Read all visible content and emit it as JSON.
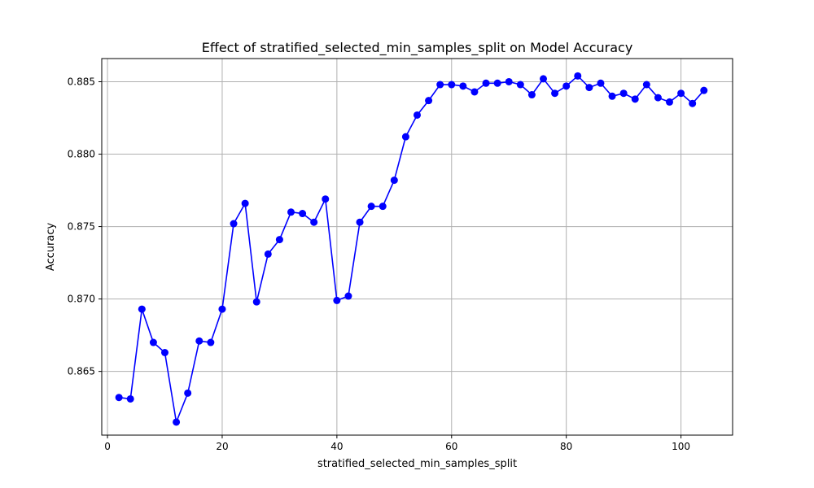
{
  "chart_data": {
    "type": "line",
    "title": "Effect of stratified_selected_min_samples_split on Model Accuracy",
    "xlabel": "stratified_selected_min_samples_split",
    "ylabel": "Accuracy",
    "xlim": [
      -1,
      109
    ],
    "ylim": [
      0.8606,
      0.8866
    ],
    "xticks": [
      0,
      20,
      40,
      60,
      80,
      100
    ],
    "yticks": [
      0.865,
      0.87,
      0.875,
      0.88,
      0.885
    ],
    "ytick_labels": [
      "0.865",
      "0.870",
      "0.875",
      "0.880",
      "0.885"
    ],
    "grid": true,
    "color": "#0000ff",
    "marker": "circle",
    "series": [
      {
        "x": [
          2,
          4,
          6,
          8,
          10,
          12,
          14,
          16,
          18,
          20,
          22,
          24,
          26,
          28,
          30,
          32,
          34,
          36,
          38,
          40,
          42,
          44,
          46,
          48,
          50,
          52,
          54,
          56,
          58,
          60,
          62,
          64,
          66,
          68,
          70,
          72,
          74,
          76,
          78,
          80,
          82,
          84,
          86,
          88,
          90,
          92,
          94,
          96,
          98,
          100,
          102,
          104
        ],
        "y": [
          0.8632,
          0.8631,
          0.8693,
          0.867,
          0.8663,
          0.8615,
          0.8635,
          0.8671,
          0.867,
          0.8693,
          0.8752,
          0.8766,
          0.8698,
          0.8731,
          0.8741,
          0.876,
          0.8759,
          0.8753,
          0.8769,
          0.8699,
          0.8702,
          0.8753,
          0.8764,
          0.8764,
          0.8782,
          0.8812,
          0.8827,
          0.8837,
          0.8848,
          0.8848,
          0.8847,
          0.8843,
          0.8849,
          0.8849,
          0.885,
          0.8848,
          0.8841,
          0.8852,
          0.8842,
          0.8847,
          0.8854,
          0.8846,
          0.8849,
          0.884,
          0.8842,
          0.8838,
          0.8848,
          0.8839,
          0.8836,
          0.8842,
          0.8835,
          0.8844
        ]
      }
    ]
  }
}
